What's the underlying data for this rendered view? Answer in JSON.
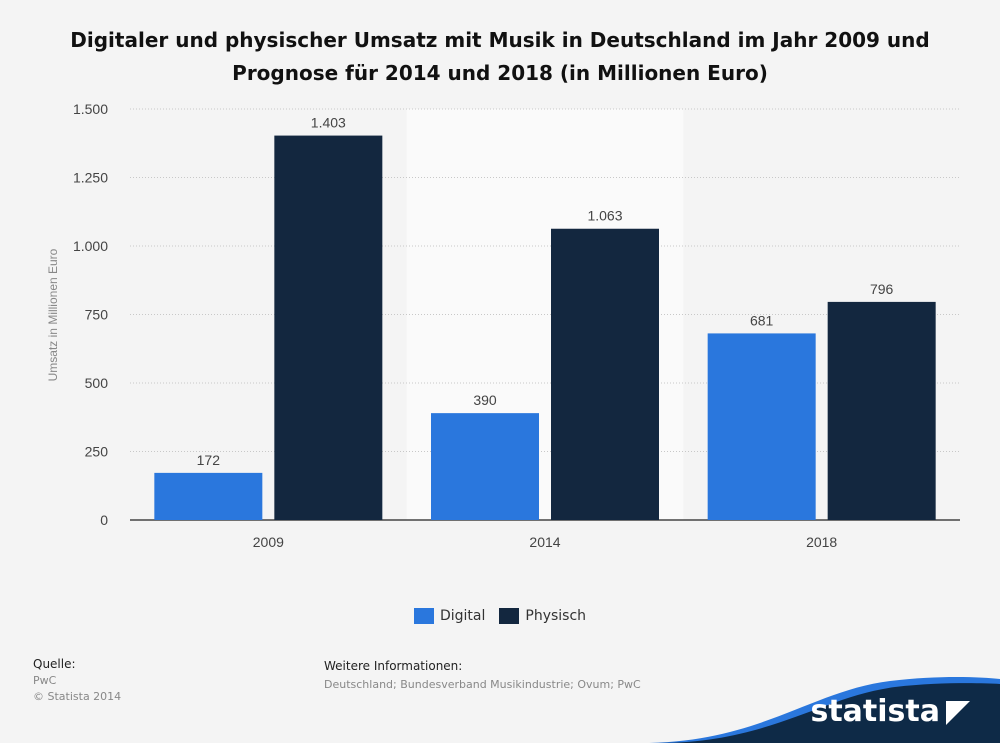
{
  "chart_data": {
    "type": "bar",
    "title": "Digitaler und physischer Umsatz mit Musik in Deutschland im Jahr 2009 und Prognose für 2014 und 2018 (in Millionen Euro)",
    "categories": [
      "2009",
      "2014",
      "2018"
    ],
    "series": [
      {
        "name": "Digital",
        "values": [
          172,
          390,
          681
        ],
        "labels": [
          "172",
          "390",
          "681"
        ],
        "color": "#2a77dd"
      },
      {
        "name": "Physisch",
        "values": [
          1403,
          1063,
          796
        ],
        "labels": [
          "1.403",
          "1.063",
          "796"
        ],
        "color": "#13273f"
      }
    ],
    "ylabel": "Umsatz in Millionen Euro",
    "ylim": [
      0,
      1500
    ],
    "yticks": [
      0,
      250,
      500,
      750,
      1000,
      1250,
      1500
    ],
    "ytick_labels": [
      "0",
      "250",
      "500",
      "750",
      "1.000",
      "1.250",
      "1.500"
    ],
    "grid": true,
    "legend": "bottom-center",
    "highlight_category": "2014"
  },
  "footer": {
    "source_heading": "Quelle:",
    "source": "PwC",
    "copyright": "© Statista 2014",
    "info_heading": "Weitere Informationen:",
    "info": "Deutschland; Bundesverband Musikindustrie; Ovum; PwC"
  },
  "brand": {
    "name": "statista",
    "color": "#0e2a47",
    "accent": "#2a77dd"
  }
}
